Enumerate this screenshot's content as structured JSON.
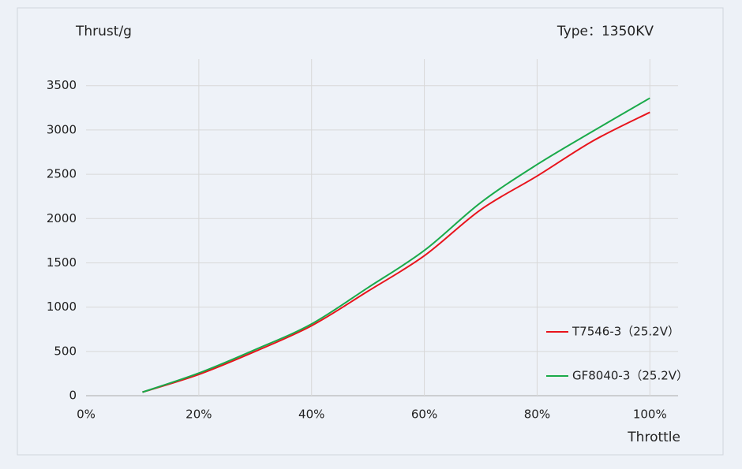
{
  "chart_data": {
    "type": "line",
    "y_label": "Thrust/g",
    "annotation": "Type：1350KV",
    "x_label": "Throttle",
    "x": [
      10,
      20,
      30,
      40,
      50,
      60,
      70,
      80,
      90,
      100
    ],
    "series": [
      {
        "name": "T7546-3（25.2V）",
        "color": "#e8141c",
        "values": [
          40,
          240,
          500,
          790,
          1180,
          1580,
          2100,
          2480,
          2880,
          3200
        ]
      },
      {
        "name": "GF8040-3（25.2V）",
        "color": "#1aaa4a",
        "values": [
          40,
          255,
          520,
          810,
          1220,
          1640,
          2180,
          2610,
          2990,
          3360
        ]
      }
    ],
    "xlim": [
      0,
      105
    ],
    "ylim": [
      0,
      3800
    ],
    "xticks": [
      {
        "value": 0,
        "label": "0%"
      },
      {
        "value": 20,
        "label": "20%"
      },
      {
        "value": 40,
        "label": "40%"
      },
      {
        "value": 60,
        "label": "60%"
      },
      {
        "value": 80,
        "label": "80%"
      },
      {
        "value": 100,
        "label": "100%"
      }
    ],
    "yticks": [
      0,
      500,
      1000,
      1500,
      2000,
      2500,
      3000,
      3500
    ],
    "grid": true,
    "legend": "lower right"
  }
}
